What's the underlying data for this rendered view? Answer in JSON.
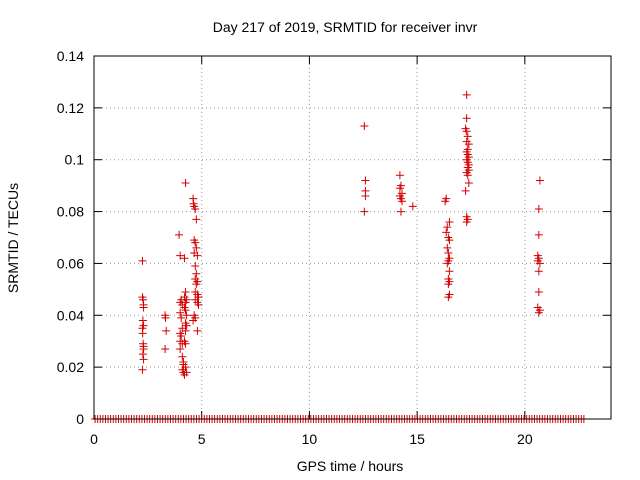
{
  "chart_data": {
    "type": "scatter",
    "title": "Day 217 of 2019, SRMTID for receiver invr",
    "xlabel": "GPS time / hours",
    "ylabel": "SRMTID / TECUs",
    "xlim": [
      0,
      24
    ],
    "ylim": [
      0,
      0.14
    ],
    "x_ticks": [
      0,
      5,
      10,
      15,
      20
    ],
    "x_tick_labels": [
      "0",
      "5",
      "10",
      "15",
      "20"
    ],
    "y_ticks": [
      0,
      0.02,
      0.04,
      0.06,
      0.08,
      0.1,
      0.12,
      0.14
    ],
    "y_tick_labels": [
      "0",
      "0.02",
      "0.04",
      "0.06",
      "0.08",
      "0.1",
      "0.12",
      "0.14"
    ],
    "grid": true,
    "marker": "+",
    "marker_color": "#d40000",
    "zero_baseline": {
      "x_start": 0.05,
      "x_end": 22.8,
      "y": 0
    },
    "series": [
      {
        "points": [
          [
            2.25,
            0.061
          ],
          [
            2.25,
            0.047
          ],
          [
            2.28,
            0.046
          ],
          [
            2.3,
            0.044
          ],
          [
            2.3,
            0.043
          ],
          [
            2.27,
            0.038
          ],
          [
            2.25,
            0.035
          ],
          [
            2.3,
            0.036
          ],
          [
            2.26,
            0.033
          ],
          [
            2.28,
            0.029
          ],
          [
            2.3,
            0.028
          ],
          [
            2.3,
            0.027
          ],
          [
            2.27,
            0.025
          ],
          [
            2.3,
            0.023
          ],
          [
            2.25,
            0.019
          ],
          [
            3.3,
            0.04
          ],
          [
            3.32,
            0.039
          ],
          [
            3.35,
            0.034
          ],
          [
            3.3,
            0.027
          ],
          [
            3.95,
            0.071
          ],
          [
            4.0,
            0.063
          ],
          [
            4.05,
            0.046
          ],
          [
            4.0,
            0.045
          ],
          [
            4.1,
            0.044
          ],
          [
            4.0,
            0.041
          ],
          [
            4.05,
            0.039
          ],
          [
            4.1,
            0.035
          ],
          [
            4.0,
            0.033
          ],
          [
            4.05,
            0.032
          ],
          [
            4.0,
            0.03
          ],
          [
            4.1,
            0.029
          ],
          [
            4.0,
            0.027
          ],
          [
            4.1,
            0.024
          ],
          [
            4.15,
            0.022
          ],
          [
            4.15,
            0.021
          ],
          [
            4.1,
            0.019
          ],
          [
            4.15,
            0.018
          ],
          [
            4.2,
            0.017
          ],
          [
            4.25,
            0.091
          ],
          [
            4.2,
            0.062
          ],
          [
            4.25,
            0.049
          ],
          [
            4.2,
            0.047
          ],
          [
            4.3,
            0.046
          ],
          [
            4.25,
            0.045
          ],
          [
            4.2,
            0.043
          ],
          [
            4.25,
            0.042
          ],
          [
            4.3,
            0.04
          ],
          [
            4.25,
            0.037
          ],
          [
            4.3,
            0.036
          ],
          [
            4.25,
            0.034
          ],
          [
            4.2,
            0.03
          ],
          [
            4.25,
            0.029
          ],
          [
            4.25,
            0.02
          ],
          [
            4.3,
            0.018
          ],
          [
            4.6,
            0.085
          ],
          [
            4.62,
            0.083
          ],
          [
            4.65,
            0.082
          ],
          [
            4.7,
            0.081
          ],
          [
            4.75,
            0.077
          ],
          [
            4.65,
            0.069
          ],
          [
            4.7,
            0.068
          ],
          [
            4.75,
            0.066
          ],
          [
            4.65,
            0.064
          ],
          [
            4.8,
            0.063
          ],
          [
            4.7,
            0.059
          ],
          [
            4.75,
            0.056
          ],
          [
            4.7,
            0.054
          ],
          [
            4.8,
            0.053
          ],
          [
            4.75,
            0.052
          ],
          [
            4.7,
            0.049
          ],
          [
            4.8,
            0.048
          ],
          [
            4.85,
            0.047
          ],
          [
            4.7,
            0.046
          ],
          [
            4.8,
            0.045
          ],
          [
            4.85,
            0.044
          ],
          [
            4.65,
            0.04
          ],
          [
            4.7,
            0.039
          ],
          [
            4.6,
            0.038
          ],
          [
            4.8,
            0.034
          ],
          [
            12.55,
            0.113
          ],
          [
            12.6,
            0.092
          ],
          [
            12.6,
            0.088
          ],
          [
            12.6,
            0.086
          ],
          [
            12.55,
            0.08
          ],
          [
            14.2,
            0.094
          ],
          [
            14.25,
            0.09
          ],
          [
            14.2,
            0.089
          ],
          [
            14.3,
            0.087
          ],
          [
            14.2,
            0.086
          ],
          [
            14.25,
            0.085
          ],
          [
            14.3,
            0.084
          ],
          [
            14.25,
            0.08
          ],
          [
            14.8,
            0.082
          ],
          [
            16.35,
            0.085
          ],
          [
            16.3,
            0.084
          ],
          [
            16.5,
            0.076
          ],
          [
            16.4,
            0.074
          ],
          [
            16.35,
            0.072
          ],
          [
            16.45,
            0.07
          ],
          [
            16.5,
            0.069
          ],
          [
            16.4,
            0.066
          ],
          [
            16.45,
            0.064
          ],
          [
            16.5,
            0.062
          ],
          [
            16.45,
            0.061
          ],
          [
            16.4,
            0.06
          ],
          [
            16.5,
            0.057
          ],
          [
            16.45,
            0.054
          ],
          [
            16.5,
            0.053
          ],
          [
            16.45,
            0.052
          ],
          [
            16.5,
            0.048
          ],
          [
            16.45,
            0.047
          ],
          [
            17.3,
            0.125
          ],
          [
            17.3,
            0.116
          ],
          [
            17.25,
            0.112
          ],
          [
            17.3,
            0.111
          ],
          [
            17.35,
            0.109
          ],
          [
            17.3,
            0.107
          ],
          [
            17.4,
            0.106
          ],
          [
            17.35,
            0.104
          ],
          [
            17.3,
            0.103
          ],
          [
            17.35,
            0.102
          ],
          [
            17.4,
            0.101
          ],
          [
            17.3,
            0.1
          ],
          [
            17.35,
            0.099
          ],
          [
            17.4,
            0.098
          ],
          [
            17.35,
            0.097
          ],
          [
            17.4,
            0.096
          ],
          [
            17.3,
            0.095
          ],
          [
            17.35,
            0.094
          ],
          [
            17.4,
            0.091
          ],
          [
            17.25,
            0.088
          ],
          [
            17.3,
            0.078
          ],
          [
            17.35,
            0.077
          ],
          [
            17.3,
            0.076
          ],
          [
            20.7,
            0.092
          ],
          [
            20.65,
            0.081
          ],
          [
            20.65,
            0.071
          ],
          [
            20.6,
            0.063
          ],
          [
            20.65,
            0.062
          ],
          [
            20.6,
            0.061
          ],
          [
            20.7,
            0.06
          ],
          [
            20.65,
            0.057
          ],
          [
            20.65,
            0.049
          ],
          [
            20.6,
            0.043
          ],
          [
            20.7,
            0.042
          ],
          [
            20.65,
            0.041
          ]
        ]
      }
    ]
  }
}
